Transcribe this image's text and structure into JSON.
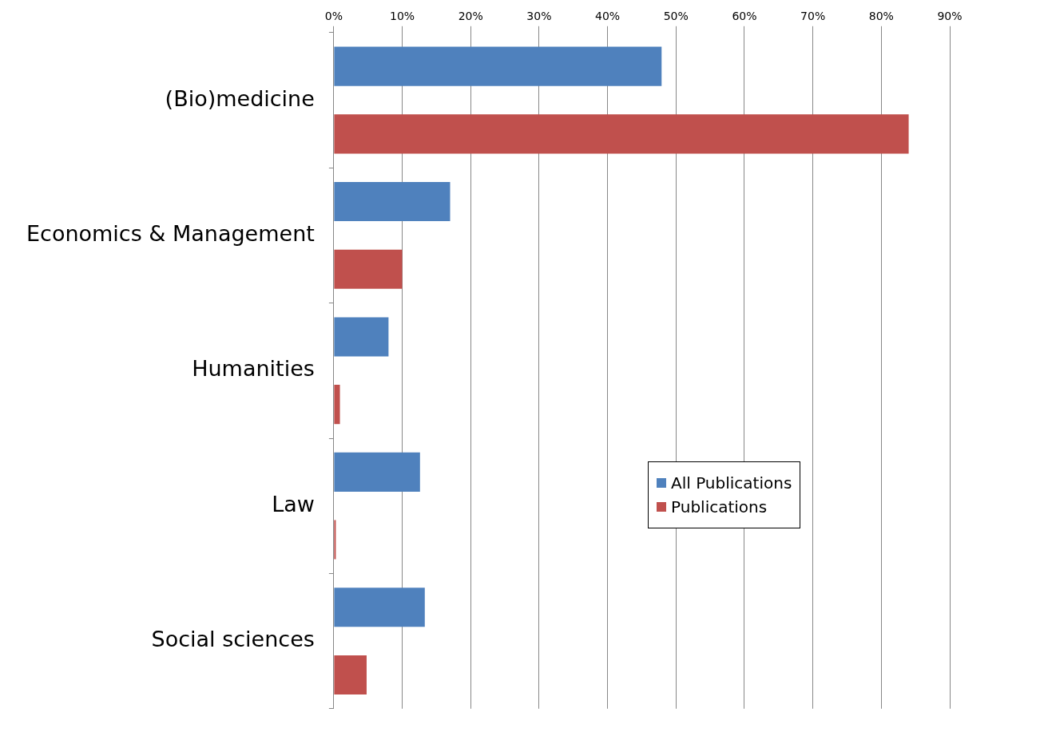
{
  "chart_data": {
    "type": "bar",
    "orientation": "horizontal",
    "categories": [
      "(Bio)medicine",
      "Economics & Management",
      "Humanities",
      "Law",
      "Social sciences"
    ],
    "series": [
      {
        "name": "All Publications",
        "color": "#4f81bd",
        "values": [
          47.9,
          17.0,
          8.0,
          12.6,
          13.3
        ]
      },
      {
        "name": "Publications",
        "color": "#c0504d",
        "values": [
          84.0,
          10.0,
          0.9,
          0.3,
          4.8
        ]
      }
    ],
    "xlim": [
      0,
      90
    ],
    "xticks": [
      {
        "value": 0,
        "label": "0%"
      },
      {
        "value": 10,
        "label": "10%"
      },
      {
        "value": 20,
        "label": "20%"
      },
      {
        "value": 30,
        "label": "30%"
      },
      {
        "value": 40,
        "label": "40%"
      },
      {
        "value": 50,
        "label": "50%"
      },
      {
        "value": 60,
        "label": "60%"
      },
      {
        "value": 70,
        "label": "70%"
      },
      {
        "value": 80,
        "label": "80%"
      },
      {
        "value": 90,
        "label": "90%"
      }
    ],
    "grid": "x",
    "legend": "right"
  }
}
